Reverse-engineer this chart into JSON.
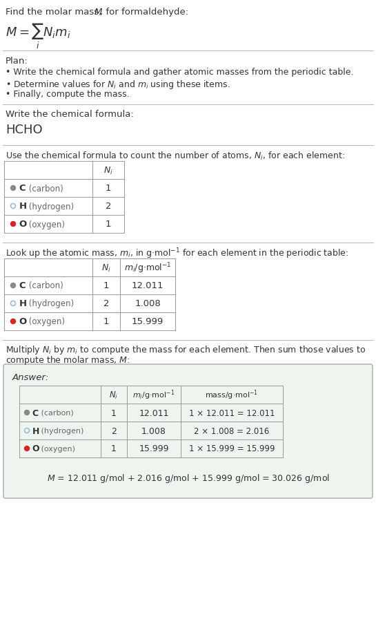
{
  "bg_color": "#ffffff",
  "text_color": "#333333",
  "sep_color": "#bbbbbb",
  "table_color": "#888888",
  "dot_colors_carbon": "#888888",
  "dot_colors_hydrogen": "#99bbdd",
  "dot_colors_oxygen": "#dd2222",
  "element_symbols": [
    "C",
    "H",
    "O"
  ],
  "element_names": [
    "carbon",
    "hydrogen",
    "oxygen"
  ],
  "dot_filled": [
    true,
    false,
    true
  ],
  "Ni": [
    1,
    2,
    1
  ],
  "mi": [
    12.011,
    1.008,
    15.999
  ],
  "mass_calc": [
    "1 × 12.011 = 12.011",
    "2 × 1.008 = 2.016",
    "1 × 15.999 = 15.999"
  ],
  "answer_bg": "#eef5ee",
  "answer_border": "#aaaaaa"
}
